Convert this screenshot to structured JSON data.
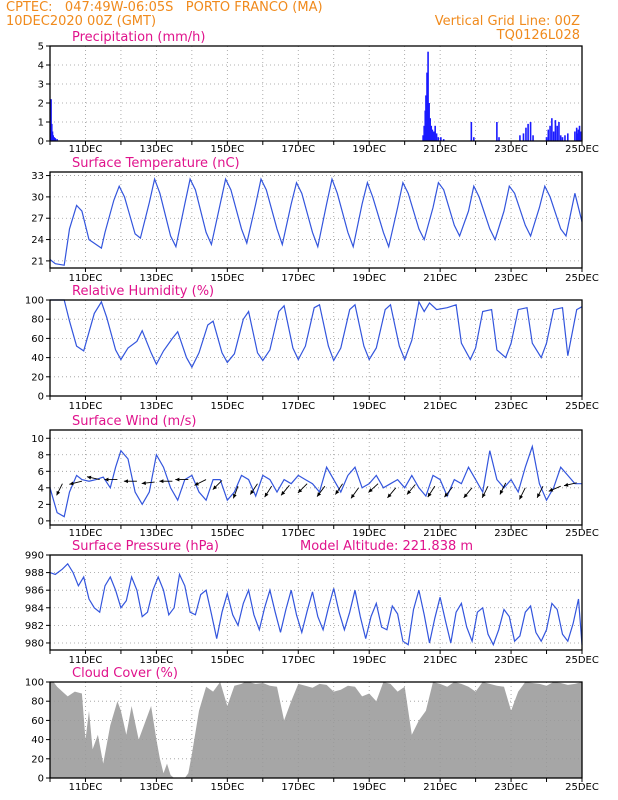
{
  "header": {
    "line1_left": "CPTEC:   047:49W-06:05S   PORTO FRANCO (MA)",
    "line2_left": "10DEC2020 00Z (GMT)",
    "line1_right": "Vertical Grid Line: 00Z",
    "line2_right": "TQ0126L028"
  },
  "model_altitude": "Model Altitude: 221.838 m",
  "chart_data": [
    {
      "type": "bar",
      "title": "Precipitation (mm/h)",
      "x_tick_labels": [
        "11DEC",
        "13DEC",
        "15DEC",
        "17DEC",
        "19DEC",
        "21DEC",
        "23DEC",
        "25DEC"
      ],
      "y_ticks": [
        0,
        1,
        2,
        3,
        4,
        5
      ],
      "ylim": [
        0,
        5
      ],
      "x_range_days": [
        0,
        15
      ],
      "color": "#1a1aff",
      "points": [
        [
          0.01,
          1.4
        ],
        [
          0.03,
          2.2
        ],
        [
          0.05,
          0.9
        ],
        [
          0.07,
          0.5
        ],
        [
          0.09,
          0.3
        ],
        [
          0.12,
          0.2
        ],
        [
          0.15,
          0.15
        ],
        [
          0.2,
          0.1
        ],
        [
          10.52,
          0.3
        ],
        [
          10.55,
          0.8
        ],
        [
          10.58,
          1.6
        ],
        [
          10.6,
          2.4
        ],
        [
          10.63,
          3.6
        ],
        [
          10.66,
          4.7
        ],
        [
          10.69,
          2.0
        ],
        [
          10.72,
          1.2
        ],
        [
          10.75,
          0.8
        ],
        [
          10.78,
          0.6
        ],
        [
          10.82,
          0.5
        ],
        [
          10.86,
          0.8
        ],
        [
          10.9,
          0.4
        ],
        [
          10.95,
          0.2
        ],
        [
          11.02,
          0.2
        ],
        [
          11.1,
          0.1
        ],
        [
          11.88,
          1.0
        ],
        [
          11.95,
          0.2
        ],
        [
          12.6,
          1.0
        ],
        [
          12.66,
          0.2
        ],
        [
          13.25,
          0.3
        ],
        [
          13.35,
          0.4
        ],
        [
          13.42,
          0.7
        ],
        [
          13.48,
          0.9
        ],
        [
          13.55,
          1.0
        ],
        [
          13.62,
          0.3
        ],
        [
          14.0,
          0.2
        ],
        [
          14.05,
          0.6
        ],
        [
          14.1,
          0.8
        ],
        [
          14.15,
          1.2
        ],
        [
          14.2,
          0.5
        ],
        [
          14.25,
          1.1
        ],
        [
          14.3,
          0.8
        ],
        [
          14.35,
          1.0
        ],
        [
          14.4,
          0.3
        ],
        [
          14.45,
          0.2
        ],
        [
          14.52,
          0.3
        ],
        [
          14.6,
          0.4
        ],
        [
          14.8,
          0.5
        ],
        [
          14.85,
          0.7
        ],
        [
          14.88,
          0.4
        ],
        [
          14.9,
          0.6
        ],
        [
          14.93,
          0.8
        ],
        [
          14.96,
          0.5
        ]
      ]
    },
    {
      "type": "line",
      "title": "Surface Temperature (nC)",
      "x_tick_labels": [
        "11DEC",
        "13DEC",
        "15DEC",
        "17DEC",
        "19DEC",
        "21DEC",
        "23DEC",
        "25DEC"
      ],
      "y_ticks": [
        21,
        24,
        27,
        30,
        33
      ],
      "ylim": [
        20,
        33.5
      ],
      "color": "#3355dd",
      "x_days": [
        0,
        0.15,
        0.4,
        0.55,
        0.75,
        0.9,
        1.1,
        1.45,
        1.55,
        1.8,
        1.95,
        2.1,
        2.4,
        2.55,
        2.8,
        2.95,
        3.1,
        3.4,
        3.55,
        3.8,
        3.95,
        4.1,
        4.4,
        4.55,
        4.8,
        4.95,
        5.1,
        5.4,
        5.55,
        5.8,
        5.95,
        6.1,
        6.4,
        6.55,
        6.8,
        6.95,
        7.1,
        7.4,
        7.55,
        7.8,
        7.95,
        8.1,
        8.4,
        8.55,
        8.8,
        8.95,
        9.1,
        9.4,
        9.55,
        9.8,
        9.95,
        10.1,
        10.4,
        10.55,
        10.8,
        10.95,
        11.1,
        11.4,
        11.55,
        11.8,
        11.95,
        12.1,
        12.4,
        12.55,
        12.8,
        12.95,
        13.1,
        13.4,
        13.55,
        13.8,
        13.95,
        14.1,
        14.4,
        14.55,
        14.8,
        15.0
      ],
      "y": [
        21.2,
        20.6,
        20.4,
        25.5,
        28.8,
        28.0,
        24.0,
        22.8,
        25.0,
        29.5,
        31.5,
        30.0,
        24.8,
        24.2,
        29.2,
        32.5,
        30.5,
        24.5,
        23.0,
        29.0,
        32.5,
        31.0,
        25.0,
        23.3,
        29.0,
        32.5,
        31.0,
        25.5,
        23.5,
        29.0,
        32.5,
        31.0,
        25.5,
        23.3,
        29.0,
        32.0,
        30.5,
        25.0,
        23.0,
        29.0,
        32.5,
        30.5,
        25.0,
        23.0,
        29.0,
        32.0,
        30.0,
        25.0,
        23.0,
        28.5,
        32.0,
        30.5,
        25.5,
        24.0,
        28.5,
        32.0,
        31.0,
        26.0,
        24.5,
        28.0,
        31.5,
        30.0,
        25.5,
        24.0,
        28.0,
        31.5,
        30.5,
        26.0,
        24.5,
        28.5,
        31.5,
        30.0,
        25.5,
        24.5,
        30.5,
        26.5
      ]
    },
    {
      "type": "line",
      "title": "Relative Humidity (%)",
      "x_tick_labels": [
        "11DEC",
        "13DEC",
        "15DEC",
        "17DEC",
        "19DEC",
        "21DEC",
        "23DEC",
        "25DEC"
      ],
      "y_ticks": [
        0,
        20,
        40,
        60,
        80,
        100
      ],
      "ylim": [
        0,
        100
      ],
      "color": "#3355dd",
      "x_days": [
        0,
        0.4,
        0.55,
        0.75,
        0.95,
        1.25,
        1.45,
        1.6,
        1.85,
        2.0,
        2.2,
        2.45,
        2.6,
        2.85,
        3.0,
        3.2,
        3.45,
        3.6,
        3.85,
        4.0,
        4.2,
        4.45,
        4.6,
        4.85,
        5.0,
        5.2,
        5.45,
        5.6,
        5.85,
        6.0,
        6.2,
        6.45,
        6.6,
        6.85,
        7.0,
        7.2,
        7.45,
        7.6,
        7.85,
        8.0,
        8.2,
        8.45,
        8.6,
        8.85,
        9.0,
        9.2,
        9.45,
        9.6,
        9.85,
        10.0,
        10.2,
        10.4,
        10.55,
        10.7,
        10.9,
        11.2,
        11.45,
        11.6,
        11.85,
        12.0,
        12.2,
        12.45,
        12.6,
        12.85,
        13.0,
        13.2,
        13.45,
        13.6,
        13.85,
        14.0,
        14.2,
        14.45,
        14.6,
        14.85,
        15.0
      ],
      "y": [
        100,
        100,
        78,
        52,
        47,
        86,
        98,
        82,
        48,
        38,
        50,
        57,
        68,
        45,
        33,
        47,
        60,
        67,
        40,
        30,
        45,
        74,
        78,
        45,
        35,
        44,
        80,
        88,
        45,
        37,
        48,
        88,
        94,
        50,
        38,
        52,
        92,
        95,
        52,
        37,
        50,
        90,
        95,
        52,
        38,
        50,
        90,
        95,
        52,
        38,
        58,
        98,
        88,
        97,
        90,
        92,
        95,
        55,
        38,
        50,
        88,
        90,
        48,
        40,
        55,
        90,
        92,
        55,
        40,
        55,
        90,
        92,
        42,
        90,
        93
      ]
    },
    {
      "type": "line",
      "title": "Surface Wind (m/s)",
      "x_tick_labels": [
        "11DEC",
        "13DEC",
        "15DEC",
        "17DEC",
        "19DEC",
        "21DEC",
        "23DEC",
        "25DEC"
      ],
      "y_ticks": [
        0,
        2,
        4,
        6,
        8,
        10
      ],
      "ylim": [
        -0.5,
        11
      ],
      "color": "#3355dd",
      "x_days": [
        0,
        0.2,
        0.4,
        0.55,
        0.75,
        0.9,
        1.1,
        1.3,
        1.5,
        1.7,
        1.85,
        2.0,
        2.2,
        2.4,
        2.6,
        2.8,
        3.0,
        3.2,
        3.4,
        3.6,
        3.8,
        4.0,
        4.2,
        4.4,
        4.6,
        4.8,
        5.0,
        5.2,
        5.4,
        5.6,
        5.8,
        6.0,
        6.2,
        6.4,
        6.6,
        6.8,
        7.0,
        7.2,
        7.4,
        7.6,
        7.8,
        8.0,
        8.2,
        8.4,
        8.6,
        8.8,
        9.0,
        9.2,
        9.4,
        9.6,
        9.8,
        10.0,
        10.2,
        10.4,
        10.6,
        10.8,
        11.0,
        11.2,
        11.4,
        11.6,
        11.8,
        12.0,
        12.2,
        12.4,
        12.6,
        12.8,
        13.0,
        13.2,
        13.4,
        13.6,
        13.8,
        14.0,
        14.2,
        14.4,
        14.6,
        14.8,
        15.0
      ],
      "y": [
        4.0,
        1.0,
        0.5,
        3.5,
        5.5,
        5.0,
        4.8,
        5.0,
        5.3,
        4.0,
        6.5,
        8.5,
        7.5,
        3.5,
        2.0,
        3.5,
        8.0,
        6.5,
        4.0,
        2.5,
        5.0,
        5.5,
        3.5,
        2.5,
        5.0,
        5.0,
        2.5,
        3.5,
        5.5,
        5.0,
        3.0,
        5.5,
        5.0,
        3.5,
        5.0,
        4.5,
        5.5,
        5.0,
        4.5,
        3.5,
        6.5,
        5.0,
        3.5,
        5.5,
        6.5,
        4.0,
        4.5,
        5.5,
        4.0,
        4.5,
        5.0,
        4.0,
        5.5,
        4.0,
        3.0,
        5.5,
        5.0,
        3.0,
        5.0,
        4.5,
        6.5,
        5.0,
        3.5,
        8.5,
        5.0,
        4.0,
        5.0,
        3.5,
        6.5,
        9.0,
        4.5,
        2.5,
        4.0,
        6.5,
        5.5,
        4.5,
        4.5
      ],
      "arrows_days": [
        0.35,
        0.9,
        1.4,
        1.9,
        2.45,
        2.95,
        3.45,
        3.9,
        4.4,
        4.85,
        5.3,
        5.85,
        6.25,
        6.75,
        7.25,
        7.75,
        8.25,
        8.7,
        9.25,
        9.75,
        10.3,
        10.85,
        11.35,
        11.9,
        12.35,
        12.85,
        13.4,
        13.9,
        14.4,
        14.85
      ],
      "arrows_y": [
        4.5,
        4.8,
        5.0,
        5.0,
        4.8,
        4.7,
        4.8,
        5.0,
        5.0,
        4.9,
        4.2,
        4.5,
        4.2,
        4.3,
        4.5,
        4.2,
        4.5,
        4.0,
        4.5,
        4.0,
        4.4,
        4.2,
        4.1,
        4.0,
        4.2,
        4.6,
        4.0,
        4.2,
        4.2,
        4.6
      ],
      "arrows_dx": [
        -0.3,
        -0.8,
        -0.9,
        -0.8,
        -0.9,
        -0.9,
        -0.9,
        -0.8,
        -0.6,
        -0.5,
        -0.3,
        -0.4,
        -0.45,
        -0.5,
        -0.5,
        -0.45,
        -0.4,
        -0.5,
        -0.55,
        -0.5,
        -0.5,
        -0.45,
        -0.4,
        -0.5,
        -0.3,
        -0.4,
        -0.35,
        -0.3,
        -0.7,
        -0.9
      ],
      "arrows_dy": [
        -0.6,
        -0.2,
        0.2,
        0.0,
        0.0,
        -0.1,
        0.0,
        0.0,
        -0.3,
        -0.5,
        -0.8,
        -0.6,
        -0.7,
        -0.6,
        -0.5,
        -0.6,
        -0.6,
        -0.7,
        -0.5,
        -0.6,
        -0.6,
        -0.7,
        -0.5,
        -0.6,
        -0.6,
        -0.8,
        -0.7,
        -0.6,
        -0.3,
        -0.2
      ]
    },
    {
      "type": "line",
      "title": "Surface Pressure (hPa)",
      "x_tick_labels": [
        "11DEC",
        "13DEC",
        "15DEC",
        "17DEC",
        "19DEC",
        "21DEC",
        "23DEC",
        "25DEC"
      ],
      "y_ticks": [
        980,
        982,
        984,
        986,
        988,
        990
      ],
      "ylim": [
        979.2,
        990
      ],
      "color": "#3355dd",
      "x_days": [
        0,
        0.15,
        0.35,
        0.5,
        0.65,
        0.8,
        0.95,
        1.1,
        1.25,
        1.4,
        1.55,
        1.7,
        1.85,
        2.0,
        2.15,
        2.3,
        2.45,
        2.6,
        2.75,
        2.9,
        3.05,
        3.2,
        3.35,
        3.5,
        3.65,
        3.8,
        3.95,
        4.1,
        4.25,
        4.4,
        4.55,
        4.7,
        4.85,
        5.0,
        5.15,
        5.3,
        5.45,
        5.6,
        5.75,
        5.9,
        6.05,
        6.2,
        6.35,
        6.5,
        6.65,
        6.8,
        6.95,
        7.1,
        7.25,
        7.4,
        7.55,
        7.7,
        7.85,
        8.0,
        8.15,
        8.3,
        8.45,
        8.6,
        8.75,
        8.9,
        9.05,
        9.2,
        9.35,
        9.5,
        9.65,
        9.8,
        9.95,
        10.1,
        10.25,
        10.4,
        10.55,
        10.7,
        10.85,
        11.0,
        11.15,
        11.3,
        11.45,
        11.6,
        11.75,
        11.9,
        12.05,
        12.2,
        12.35,
        12.5,
        12.65,
        12.8,
        12.95,
        13.1,
        13.25,
        13.4,
        13.55,
        13.7,
        13.85,
        14.0,
        14.15,
        14.3,
        14.45,
        14.6,
        14.75,
        14.9,
        15.0
      ],
      "y": [
        988,
        987.8,
        988.4,
        989,
        988,
        986.5,
        987.5,
        985,
        984,
        983.5,
        986.5,
        987.5,
        986,
        984,
        984.8,
        987.5,
        986,
        983,
        983.5,
        986,
        987.5,
        986,
        983.2,
        984,
        987.8,
        986.5,
        983.5,
        983.2,
        985.5,
        986,
        983.3,
        980.5,
        983.5,
        985.6,
        983.2,
        982,
        984.5,
        986,
        983.2,
        981.5,
        984,
        986,
        983.5,
        981.2,
        983.8,
        986,
        983.2,
        981.2,
        983.6,
        985.8,
        983,
        981.5,
        984,
        986.2,
        983.5,
        981.5,
        983.5,
        986,
        983,
        980.5,
        983,
        984.5,
        981.8,
        981.5,
        984.2,
        983.3,
        980.2,
        979.8,
        983.8,
        986,
        983.2,
        980,
        982.8,
        985.2,
        982.5,
        980,
        983.5,
        984.5,
        981.8,
        980.2,
        983.5,
        984,
        981,
        979.8,
        981.5,
        983.8,
        983,
        980.2,
        980.8,
        983.5,
        984.2,
        981.2,
        980.2,
        981.5,
        984.5,
        983.8,
        981,
        980.2,
        982.2,
        985,
        979.8
      ]
    },
    {
      "type": "area",
      "title": "Cloud Cover (%)",
      "x_tick_labels": [
        "11DEC",
        "13DEC",
        "15DEC",
        "17DEC",
        "19DEC",
        "21DEC",
        "23DEC",
        "25DEC"
      ],
      "y_ticks": [
        0,
        20,
        40,
        60,
        80,
        100
      ],
      "ylim": [
        0,
        100
      ],
      "color": "#a6a6a6",
      "x_days": [
        0,
        0.1,
        0.2,
        0.35,
        0.5,
        0.7,
        0.9,
        1.0,
        1.1,
        1.2,
        1.35,
        1.5,
        1.7,
        1.9,
        2.0,
        2.15,
        2.3,
        2.5,
        2.7,
        2.85,
        3.0,
        3.1,
        3.2,
        3.3,
        3.4,
        3.5,
        3.6,
        3.7,
        3.8,
        3.9,
        4.0,
        4.2,
        4.4,
        4.6,
        4.8,
        5.0,
        5.2,
        5.4,
        5.5,
        5.6,
        5.8,
        6.0,
        6.2,
        6.4,
        6.6,
        6.8,
        7.0,
        7.2,
        7.4,
        7.6,
        7.8,
        8.0,
        8.2,
        8.4,
        8.6,
        8.8,
        9.0,
        9.2,
        9.4,
        9.6,
        9.8,
        10.0,
        10.2,
        10.4,
        10.6,
        10.8,
        11.0,
        11.2,
        11.4,
        11.6,
        11.8,
        12.0,
        12.2,
        12.4,
        12.6,
        12.8,
        13.0,
        13.2,
        13.4,
        13.6,
        13.8,
        14.0,
        14.2,
        14.4,
        14.6,
        14.8,
        15.0
      ],
      "y": [
        100,
        100,
        95,
        90,
        85,
        90,
        88,
        40,
        70,
        30,
        45,
        15,
        55,
        80,
        70,
        45,
        75,
        40,
        60,
        75,
        40,
        20,
        5,
        15,
        3,
        0,
        0,
        0,
        0,
        5,
        25,
        70,
        95,
        90,
        100,
        75,
        96,
        98,
        100,
        100,
        98,
        99,
        96,
        95,
        60,
        80,
        98,
        96,
        94,
        98,
        97,
        90,
        92,
        96,
        95,
        85,
        88,
        80,
        100,
        98,
        90,
        95,
        45,
        60,
        70,
        100,
        98,
        95,
        100,
        98,
        95,
        90,
        100,
        98,
        96,
        95,
        70,
        90,
        100,
        99,
        98,
        96,
        100,
        99,
        97,
        98,
        100
      ]
    }
  ]
}
